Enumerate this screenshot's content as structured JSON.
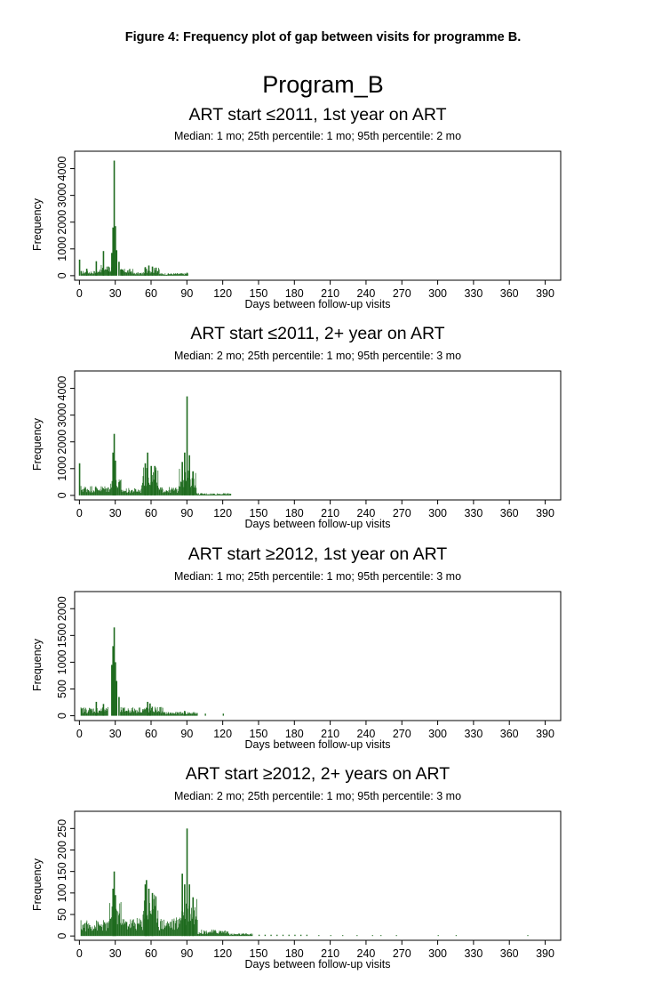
{
  "figure_caption": "Figure 4: Frequency plot of gap between visits for programme B.",
  "main_title": "Program_B",
  "colors": {
    "bars": "#1e6b1e",
    "axis": "#000000"
  },
  "chart_data": [
    {
      "type": "bar",
      "title": "ART start ≤2011, 1st year on ART",
      "subtitle": "Median: 1 mo; 25th percentile: 1 mo; 95th percentile: 2 mo",
      "xlabel": "Days between follow-up visits",
      "ylabel": "Frequency",
      "xticks": [
        0,
        30,
        60,
        90,
        120,
        150,
        180,
        210,
        240,
        270,
        300,
        330,
        360,
        390
      ],
      "xlim": [
        -4,
        403
      ],
      "yticks": [
        0,
        1000,
        2000,
        3000,
        4000
      ],
      "yticklabels": [
        "0",
        "1000",
        "2000",
        "3000",
        "4000"
      ],
      "ylim": [
        -170,
        4650
      ],
      "peaks": [
        [
          0,
          600
        ],
        [
          6,
          260
        ],
        [
          14,
          540
        ],
        [
          20,
          920
        ],
        [
          24,
          340
        ],
        [
          27,
          850
        ],
        [
          28,
          1800
        ],
        [
          29,
          4300
        ],
        [
          30,
          1850
        ],
        [
          31,
          950
        ],
        [
          33,
          520
        ],
        [
          36,
          230
        ],
        [
          55,
          320
        ],
        [
          58,
          380
        ],
        [
          61,
          340
        ],
        [
          64,
          300
        ],
        [
          90,
          110
        ]
      ],
      "baseline": [
        [
          1,
          16,
          150
        ],
        [
          16,
          27,
          320
        ],
        [
          34,
          45,
          210
        ],
        [
          45,
          54,
          100
        ],
        [
          54,
          67,
          240
        ],
        [
          67,
          91,
          80
        ]
      ],
      "isolated": []
    },
    {
      "type": "bar",
      "title": "ART start ≤2011, 2+ year on ART",
      "subtitle": "Median: 2 mo; 25th percentile: 1 mo; 95th percentile: 3 mo",
      "xlabel": "Days between follow-up visits",
      "ylabel": "Frequency",
      "xticks": [
        0,
        30,
        60,
        90,
        120,
        150,
        180,
        210,
        240,
        270,
        300,
        330,
        360,
        390
      ],
      "xlim": [
        -4,
        403
      ],
      "yticks": [
        0,
        1000,
        2000,
        3000,
        4000
      ],
      "yticklabels": [
        "0",
        "1000",
        "2000",
        "3000",
        "4000"
      ],
      "ylim": [
        -170,
        4650
      ],
      "peaks": [
        [
          0,
          1200
        ],
        [
          28,
          1600
        ],
        [
          29,
          2300
        ],
        [
          30,
          1300
        ],
        [
          55,
          1200
        ],
        [
          57,
          1600
        ],
        [
          60,
          1100
        ],
        [
          63,
          1100
        ],
        [
          86,
          1250
        ],
        [
          88,
          1600
        ],
        [
          90,
          3700
        ],
        [
          92,
          1500
        ],
        [
          95,
          900
        ]
      ],
      "baseline": [
        [
          1,
          25,
          300
        ],
        [
          25,
          35,
          500
        ],
        [
          35,
          52,
          220
        ],
        [
          52,
          66,
          850
        ],
        [
          66,
          83,
          250
        ],
        [
          83,
          98,
          800
        ],
        [
          98,
          127,
          70
        ]
      ],
      "isolated": []
    },
    {
      "type": "bar",
      "title": "ART start ≥2012, 1st year on ART",
      "subtitle": "Median: 1 mo; 25th percentile: 1 mo; 95th percentile: 3 mo",
      "xlabel": "Days between follow-up visits",
      "ylabel": "Frequency",
      "xticks": [
        0,
        30,
        60,
        90,
        120,
        150,
        180,
        210,
        240,
        270,
        300,
        330,
        360,
        390
      ],
      "xlim": [
        -4,
        403
      ],
      "yticks": [
        0,
        500,
        1000,
        1500,
        2000
      ],
      "yticklabels": [
        "0",
        "500",
        "1000",
        "1500",
        "2000"
      ],
      "ylim": [
        -90,
        2320
      ],
      "peaks": [
        [
          14,
          260
        ],
        [
          20,
          220
        ],
        [
          27,
          950
        ],
        [
          28,
          1300
        ],
        [
          29,
          1650
        ],
        [
          30,
          1000
        ],
        [
          31,
          650
        ],
        [
          33,
          350
        ],
        [
          57,
          260
        ],
        [
          59,
          230
        ],
        [
          88,
          90
        ]
      ],
      "baseline": [
        [
          1,
          24,
          130
        ],
        [
          34,
          50,
          130
        ],
        [
          50,
          70,
          140
        ],
        [
          70,
          99,
          60
        ]
      ],
      "isolated": [
        [
          105,
          40
        ],
        [
          120,
          40
        ]
      ]
    },
    {
      "type": "bar",
      "title": "ART start ≥2012, 2+ years on ART",
      "subtitle": "Median: 2 mo; 25th percentile: 1 mo; 95th percentile: 3 mo",
      "xlabel": "Days between follow-up visits",
      "ylabel": "Frequency",
      "xticks": [
        0,
        30,
        60,
        90,
        120,
        150,
        180,
        210,
        240,
        270,
        300,
        330,
        360,
        390
      ],
      "xlim": [
        -4,
        403
      ],
      "yticks": [
        0,
        50,
        100,
        150,
        200,
        250
      ],
      "yticklabels": [
        "0",
        "50",
        "100",
        "150",
        "200",
        "250"
      ],
      "ylim": [
        -10,
        290
      ],
      "peaks": [
        [
          28,
          110
        ],
        [
          29,
          150
        ],
        [
          30,
          95
        ],
        [
          55,
          120
        ],
        [
          56,
          130
        ],
        [
          58,
          110
        ],
        [
          61,
          100
        ],
        [
          86,
          145
        ],
        [
          88,
          120
        ],
        [
          90,
          250
        ],
        [
          92,
          120
        ],
        [
          95,
          90
        ]
      ],
      "baseline": [
        [
          1,
          25,
          30
        ],
        [
          25,
          36,
          65
        ],
        [
          36,
          53,
          35
        ],
        [
          53,
          66,
          80
        ],
        [
          66,
          84,
          35
        ],
        [
          84,
          99,
          70
        ],
        [
          99,
          125,
          12
        ],
        [
          125,
          145,
          5
        ]
      ],
      "isolated": [
        [
          150,
          3
        ],
        [
          155,
          3
        ],
        [
          160,
          3
        ],
        [
          165,
          3
        ],
        [
          170,
          3
        ],
        [
          175,
          3
        ],
        [
          180,
          3
        ],
        [
          185,
          3
        ],
        [
          190,
          3
        ],
        [
          200,
          2
        ],
        [
          210,
          2
        ],
        [
          220,
          2
        ],
        [
          232,
          2
        ],
        [
          245,
          2
        ],
        [
          252,
          2
        ],
        [
          265,
          2
        ],
        [
          300,
          2
        ],
        [
          315,
          2
        ],
        [
          375,
          2
        ]
      ]
    }
  ]
}
